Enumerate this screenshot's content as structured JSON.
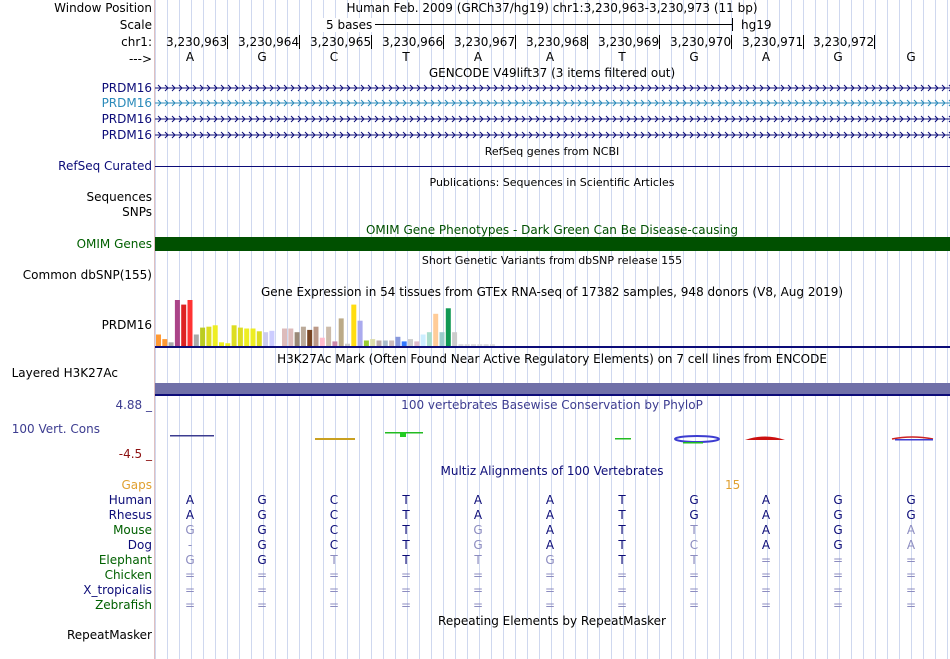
{
  "labels": {
    "window_position": "Window Position",
    "scale": "Scale",
    "chrom": "chr1:",
    "strand": "--->",
    "prdm16": [
      "PRDM16",
      "PRDM16",
      "PRDM16",
      "PRDM16"
    ],
    "refseq": "RefSeq Curated",
    "sequences": "Sequences",
    "snps": "SNPs",
    "omim": "OMIM Genes",
    "dbsnp": "Common dbSNP(155)",
    "gtex": "PRDM16",
    "h3k27ac": "Layered H3K27Ac",
    "cons_max": "4.88 _",
    "cons": "100 Vert. Cons",
    "cons_min": "-4.5 _",
    "gaps": "Gaps",
    "species": [
      "Human",
      "Rhesus",
      "Mouse",
      "Dog",
      "Elephant",
      "Chicken",
      "X_tropicalis",
      "Zebrafish"
    ],
    "repeat": "RepeatMasker"
  },
  "header": {
    "position": "Human Feb. 2009 (GRCh37/hg19)   chr1:3,230,963-3,230,973 (11 bp)",
    "scale_text": "5 bases",
    "assembly": "hg19",
    "coords": [
      "3,230,963",
      "3,230,964",
      "3,230,965",
      "3,230,966",
      "3,230,967",
      "3,230,968",
      "3,230,969",
      "3,230,970",
      "3,230,971",
      "3,230,972"
    ],
    "bases": [
      "A",
      "G",
      "C",
      "T",
      "A",
      "A",
      "T",
      "G",
      "A",
      "G",
      "G"
    ]
  },
  "tracks": {
    "gencode": "GENCODE V49lift37 (3 items filtered out)",
    "refseq": "RefSeq genes from NCBI",
    "publications": "Publications: Sequences in Scientific Articles",
    "omim": "OMIM Gene Phenotypes - Dark Green Can Be Disease-causing",
    "dbsnp": "Short Genetic Variants from dbSNP release 155",
    "gtex": "Gene Expression in 54 tissues from GTEx RNA-seq of 17382 samples, 948 donors (V8, Aug 2019)",
    "h3k27ac": "H3K27Ac Mark (Often Found Near Active Regulatory Elements) on 7 cell lines from ENCODE",
    "phylop": "100 vertebrates Basewise Conservation by PhyloP",
    "multiz": "Multiz Alignments of 100 Vertebrates",
    "gaps_count": "15",
    "repeatmasker": "Repeating Elements by RepeatMasker"
  },
  "alignment": [
    [
      "A",
      "G",
      "C",
      "T",
      "A",
      "A",
      "T",
      "G",
      "A",
      "G",
      "G"
    ],
    [
      "A",
      "G",
      "C",
      "T",
      "A",
      "A",
      "T",
      "G",
      "A",
      "G",
      "G"
    ],
    [
      "G",
      "G",
      "C",
      "T",
      "G",
      "A",
      "T",
      "T",
      "A",
      "G",
      "A"
    ],
    [
      "-",
      "G",
      "C",
      "T",
      "G",
      "A",
      "T",
      "C",
      "A",
      "G",
      "A"
    ],
    [
      "G",
      "G",
      "T",
      "T",
      "T",
      "G",
      "T",
      "T",
      "=",
      "=",
      "="
    ],
    [
      "=",
      "=",
      "=",
      "=",
      "=",
      "=",
      "=",
      "=",
      "=",
      "=",
      "="
    ],
    [
      "=",
      "=",
      "=",
      "=",
      "=",
      "=",
      "=",
      "=",
      "=",
      "=",
      "="
    ],
    [
      "=",
      "=",
      "=",
      "=",
      "=",
      "=",
      "=",
      "=",
      "=",
      "=",
      "="
    ]
  ],
  "colors": {
    "gene": "#0c0c78",
    "gene_alt": "#2a8aba",
    "omim": "#005000",
    "h3k27ac": "#7070a8",
    "cons_blue": "#3c3c90",
    "cons_red": "#8c1010",
    "gaps": "#e0a030",
    "match": "#0c0c78",
    "mismatch": "#8c8cc0",
    "green_label": "#006000"
  },
  "gtex_values": [
    0.25,
    0.15,
    0.08,
    1.0,
    0.9,
    1.0,
    0.25,
    0.4,
    0.42,
    0.45,
    0.08,
    0.06,
    0.45,
    0.4,
    0.38,
    0.38,
    0.32,
    0.3,
    0.33,
    0.05,
    0.38,
    0.38,
    0.3,
    0.42,
    0.35,
    0.42,
    0.18,
    0.42,
    0.1,
    0.6,
    0.05,
    0.9,
    0.55,
    0.12,
    0.15,
    0.12,
    0.12,
    0.12,
    0.2,
    0.1,
    0.15,
    0.1,
    0.25,
    0.3,
    0.7,
    0.3,
    0.82,
    0.3,
    0.04,
    0.04,
    0.04,
    0.04,
    0.04,
    0.04
  ],
  "gtex_colors": [
    "#ff9933",
    "#ff9933",
    "#aaaaaa",
    "#aa4488",
    "#dd2222",
    "#ff3333",
    "#aaaaaa",
    "#bbcc22",
    "#dddd22",
    "#eeee22",
    "#eeee22",
    "#eeee22",
    "#dddd22",
    "#dddd22",
    "#eeee22",
    "#eeee22",
    "#dddd22",
    "#ccccee",
    "#ccccff",
    "#ffffff",
    "#ddbbbb",
    "#ddbbbb",
    "#998877",
    "#bbaa99",
    "#774422",
    "#bb9988",
    "#ffbbcc",
    "#ccbbaa",
    "#cc88aa",
    "#bbaa88",
    "#cccccc",
    "#ffdd11",
    "#aaaaee",
    "#99cc33",
    "#ddddaa",
    "#bbaaaa",
    "#aabbcc",
    "#ccbbbb",
    "#8899dd",
    "#3377ff",
    "#cccccc",
    "#ddbbcc",
    "#cceeff",
    "#aaddcc",
    "#ffcc99",
    "#99cccc",
    "#119955",
    "#cccccc",
    "#dddddd",
    "#dddddd",
    "#dddddd",
    "#dddddd",
    "#dddddd",
    "#dddddd"
  ]
}
